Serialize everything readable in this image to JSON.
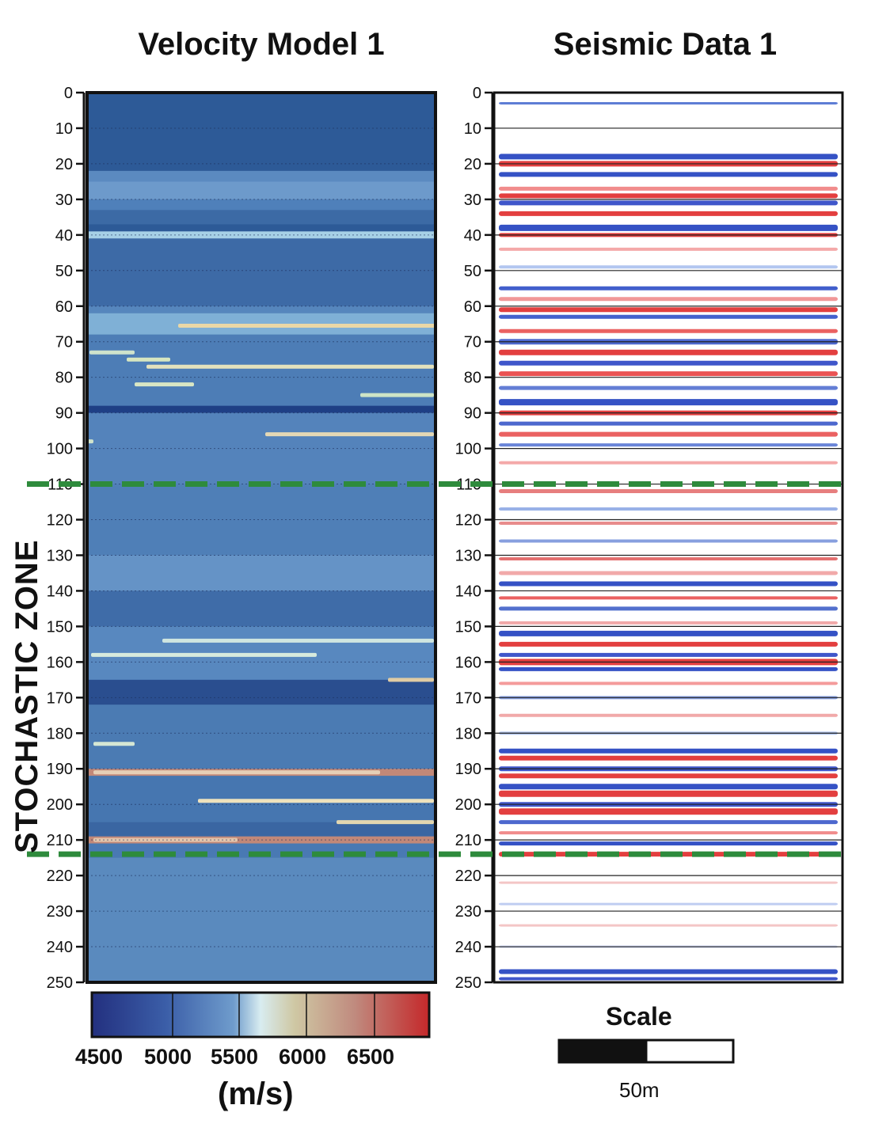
{
  "panels": {
    "left_title": "Velocity Model 1",
    "right_title": "Seismic Data 1"
  },
  "depth_axis": {
    "min": 0,
    "max": 250,
    "ticks": [
      "0",
      "10",
      "20",
      "30",
      "40",
      "50",
      "60",
      "70",
      "80",
      "90",
      "100",
      "110",
      "120",
      "130",
      "140",
      "150",
      "160",
      "170",
      "180",
      "190",
      "200",
      "210",
      "220",
      "230",
      "240",
      "250"
    ]
  },
  "zone": {
    "label": "STOCHASTIC ZONE",
    "top_depth": 110,
    "bottom_depth": 214,
    "line_color": "#2e8b3c"
  },
  "colorbar": {
    "labels": [
      "4500",
      "5000",
      "5500",
      "6000",
      "6500"
    ],
    "unit": "(m/s)",
    "colors": [
      "#23307f",
      "#3b5ea8",
      "#6f9ccc",
      "#d8ecf0",
      "#cfc8a4",
      "#c08a7e",
      "#c4282a"
    ]
  },
  "scale_bar": {
    "title": "Scale",
    "length_label": "50m"
  }
}
